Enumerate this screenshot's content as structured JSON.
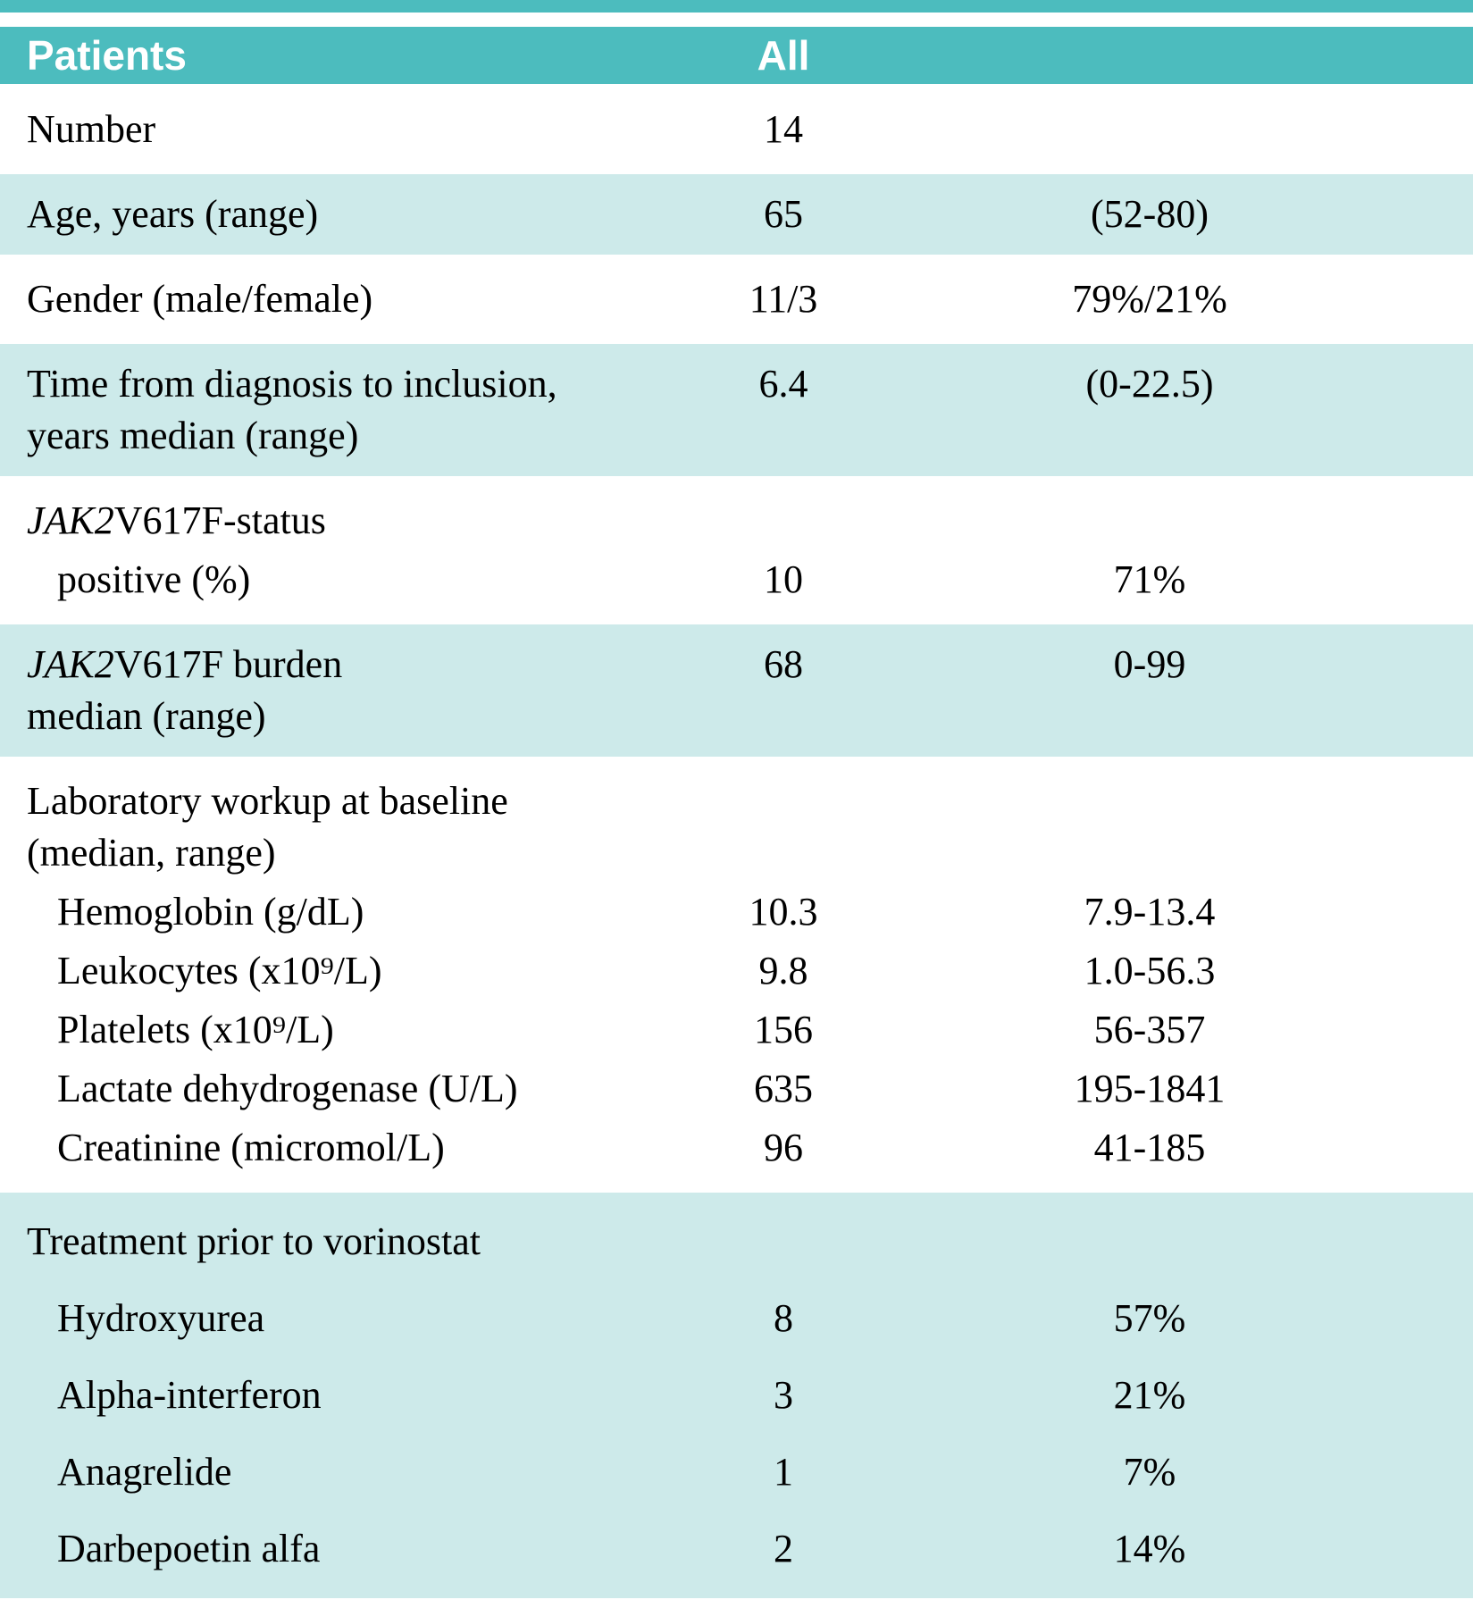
{
  "header": {
    "patients": "Patients",
    "all": "All"
  },
  "colors": {
    "header_teal": "#4cbcbe",
    "row_teal": "#cdeaea",
    "text": "#000000"
  },
  "blocks": [
    {
      "shade": false,
      "rows": [
        {
          "label": "Number",
          "value": "14"
        }
      ]
    },
    {
      "shade": true,
      "rows": [
        {
          "label": "Age, years (range)",
          "value": "65",
          "range": "(52-80)"
        }
      ]
    },
    {
      "shade": false,
      "rows": [
        {
          "label": "Gender (male/female)",
          "value": "11/3",
          "range": "79%/21%"
        }
      ]
    },
    {
      "shade": true,
      "rows": [
        {
          "label": "Time from diagnosis to inclusion,\nyears median (range)",
          "value": "6.4",
          "range": "(0-22.5)"
        }
      ]
    },
    {
      "shade": false,
      "rows": [
        {
          "label_italic": "JAK2",
          "label": "V617F-status"
        },
        {
          "label": "positive (%)",
          "indent": true,
          "value": "10",
          "range": "71%"
        }
      ]
    },
    {
      "shade": true,
      "rows": [
        {
          "label_italic": "JAK2",
          "label": "V617F burden\nmedian (range)",
          "value": "68",
          "range": "0-99"
        }
      ]
    },
    {
      "shade": false,
      "rows": [
        {
          "label": "Laboratory workup at baseline\n(median, range)"
        },
        {
          "label": "Hemoglobin (g/dL)",
          "indent": true,
          "value": "10.3",
          "range": "7.9-13.4"
        },
        {
          "label": "Leukocytes (x10⁹/L)",
          "indent": true,
          "value": "9.8",
          "range": "1.0-56.3"
        },
        {
          "label": "Platelets (x10⁹/L)",
          "indent": true,
          "value": "156",
          "range": "56-357"
        },
        {
          "label": "Lactate dehydrogenase (U/L)",
          "indent": true,
          "value": "635",
          "range": "195-1841"
        },
        {
          "label": "Creatinine (micromol/L)",
          "indent": true,
          "value": "96",
          "range": "41-185"
        }
      ]
    },
    {
      "shade": true,
      "rows": [
        {
          "label": "Treatment prior to vorinostat"
        },
        {
          "label": "Hydroxyurea",
          "indent": true,
          "value": "8",
          "range": "57%"
        },
        {
          "label": "Alpha-interferon",
          "indent": true,
          "value": "3",
          "range": "21%"
        },
        {
          "label": "Anagrelide",
          "indent": true,
          "value": "1",
          "range": "7%"
        },
        {
          "label": "Darbepoetin alfa",
          "indent": true,
          "value": "2",
          "range": "14%"
        }
      ]
    }
  ]
}
